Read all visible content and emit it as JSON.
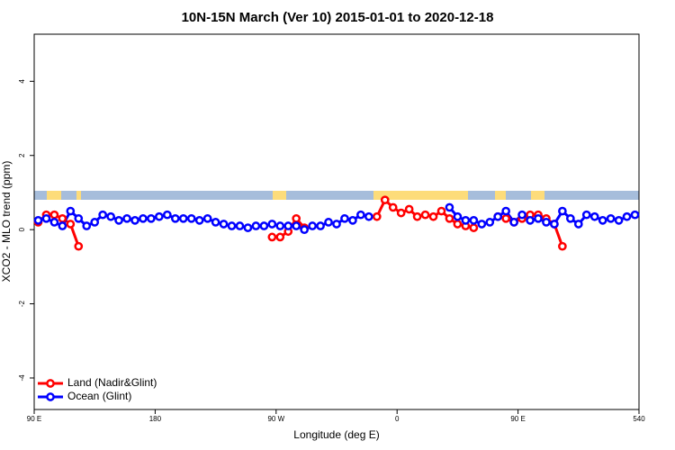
{
  "chart_data": {
    "type": "line",
    "title": "10N-15N March (Ver 10)   2015-01-01 to 2020-12-18",
    "x_label": "Longitude (deg E)",
    "y_label": "XCO2 - MLO trend (ppm)",
    "x": [
      93,
      99,
      105,
      111,
      117,
      123,
      129,
      135,
      141,
      147,
      153,
      159,
      165,
      171,
      177,
      183,
      189,
      195,
      201,
      207,
      213,
      219,
      225,
      231,
      237,
      243,
      249,
      255,
      261,
      267,
      273,
      279,
      285,
      291,
      297,
      303,
      309,
      315,
      321,
      327,
      333,
      339,
      345,
      351,
      357,
      363,
      369,
      375,
      381,
      387,
      393,
      399,
      405,
      411,
      417,
      423,
      429,
      435,
      441,
      447,
      453,
      459,
      465,
      471,
      477,
      483,
      489,
      495,
      501,
      507,
      513,
      519,
      525,
      531,
      537
    ],
    "series": [
      {
        "name": "Land (Nadir&Glint)",
        "color": "#ff0000",
        "values": [
          0.2,
          0.4,
          0.4,
          0.3,
          0.15,
          -0.45,
          null,
          null,
          null,
          null,
          null,
          null,
          null,
          null,
          null,
          null,
          null,
          null,
          null,
          null,
          null,
          null,
          null,
          null,
          null,
          null,
          null,
          null,
          null,
          -0.2,
          -0.2,
          -0.05,
          0.3,
          0.05,
          null,
          null,
          null,
          null,
          null,
          null,
          null,
          null,
          0.35,
          0.8,
          0.6,
          0.45,
          0.55,
          0.35,
          0.4,
          0.35,
          0.5,
          0.3,
          0.15,
          0.1,
          0.05,
          null,
          null,
          0.35,
          0.3,
          0.2,
          0.3,
          0.4,
          0.4,
          0.3,
          0.15,
          -0.45,
          null,
          null,
          null,
          null,
          null,
          null,
          null,
          null,
          null
        ]
      },
      {
        "name": "Ocean (Glint)",
        "color": "#0000ff",
        "values": [
          0.25,
          0.3,
          0.2,
          0.1,
          0.5,
          0.3,
          0.1,
          0.2,
          0.4,
          0.35,
          0.25,
          0.3,
          0.25,
          0.3,
          0.3,
          0.35,
          0.4,
          0.3,
          0.3,
          0.3,
          0.25,
          0.3,
          0.2,
          0.15,
          0.1,
          0.1,
          0.05,
          0.1,
          0.1,
          0.15,
          0.1,
          0.1,
          0.1,
          0.0,
          0.1,
          0.1,
          0.2,
          0.15,
          0.3,
          0.25,
          0.4,
          0.35,
          null,
          null,
          null,
          null,
          null,
          null,
          null,
          null,
          null,
          0.6,
          0.35,
          0.25,
          0.25,
          0.15,
          0.2,
          0.35,
          0.5,
          0.2,
          0.4,
          0.25,
          0.3,
          0.2,
          0.15,
          0.5,
          0.3,
          0.15,
          0.4,
          0.35,
          0.25,
          0.3,
          0.25,
          0.35,
          0.4
        ]
      }
    ],
    "xlim": [
      90,
      540
    ],
    "xticks": [
      {
        "value": 90,
        "label": "90 E"
      },
      180,
      {
        "value": 270,
        "label": "90 W"
      },
      {
        "value": 360,
        "label": "0"
      },
      {
        "value": 450,
        "label": "90 E"
      },
      540
    ],
    "ylim": [
      -4.85,
      5.27
    ],
    "yticks": [
      -4,
      -2,
      0,
      2,
      4
    ],
    "legend": "bottom-left"
  }
}
